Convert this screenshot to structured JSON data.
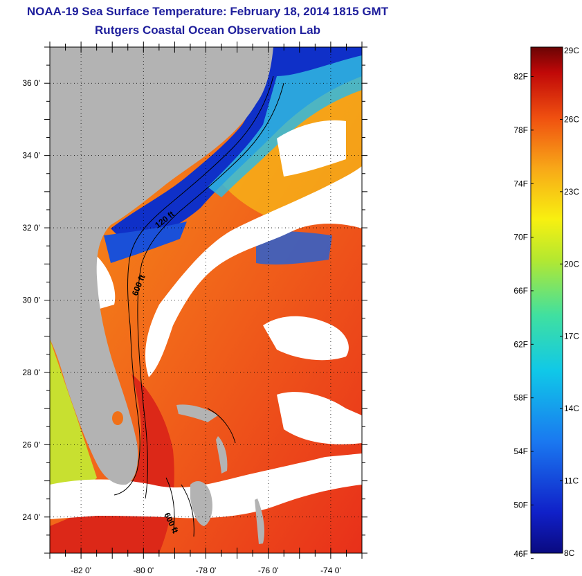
{
  "header": {
    "title": "NOAA-19 Sea Surface Temperature:  February 18, 2014 1815 GMT",
    "subtitle": "Rutgers Coastal Ocean Observation Lab"
  },
  "map": {
    "lon_range": [
      -83,
      -73
    ],
    "lat_range": [
      23,
      37
    ],
    "lon_ticks": [
      {
        "value": -82,
        "label": "-82 0'"
      },
      {
        "value": -80,
        "label": "-80 0'"
      },
      {
        "value": -78,
        "label": "-78 0'"
      },
      {
        "value": -76,
        "label": "-76 0'"
      },
      {
        "value": -74,
        "label": "-74 0'"
      }
    ],
    "lat_ticks": [
      {
        "value": 36,
        "label": "36 0'"
      },
      {
        "value": 34,
        "label": "34 0'"
      },
      {
        "value": 32,
        "label": "32 0'"
      },
      {
        "value": 30,
        "label": "30 0'"
      },
      {
        "value": 28,
        "label": "28 0'"
      },
      {
        "value": 26,
        "label": "26 0'"
      },
      {
        "value": 24,
        "label": "24 0'"
      }
    ],
    "contour_labels": [
      "120 ft",
      "600 ft",
      "600 ft"
    ],
    "colors": {
      "land": "#b3b3b3",
      "cloud": "#ffffff",
      "cold": "#0a1aa8",
      "warm": "#e8301a"
    }
  },
  "colorbar": {
    "min_c": 8,
    "max_c": 29,
    "celsius_labels": [
      {
        "value": 29,
        "label": "29C"
      },
      {
        "value": 26,
        "label": "26C"
      },
      {
        "value": 23,
        "label": "23C"
      },
      {
        "value": 20,
        "label": "20C"
      },
      {
        "value": 17,
        "label": "17C"
      },
      {
        "value": 14,
        "label": "14C"
      },
      {
        "value": 11,
        "label": "11C"
      },
      {
        "value": 8,
        "label": "8C"
      }
    ],
    "fahrenheit_labels": [
      {
        "value": 82,
        "label": "82F"
      },
      {
        "value": 78,
        "label": "78F"
      },
      {
        "value": 74,
        "label": "74F"
      },
      {
        "value": 70,
        "label": "70F"
      },
      {
        "value": 66,
        "label": "66F"
      },
      {
        "value": 62,
        "label": "62F"
      },
      {
        "value": 58,
        "label": "58F"
      },
      {
        "value": 54,
        "label": "54F"
      },
      {
        "value": 50,
        "label": "50F"
      },
      {
        "value": 46,
        "label": "46F"
      }
    ]
  }
}
